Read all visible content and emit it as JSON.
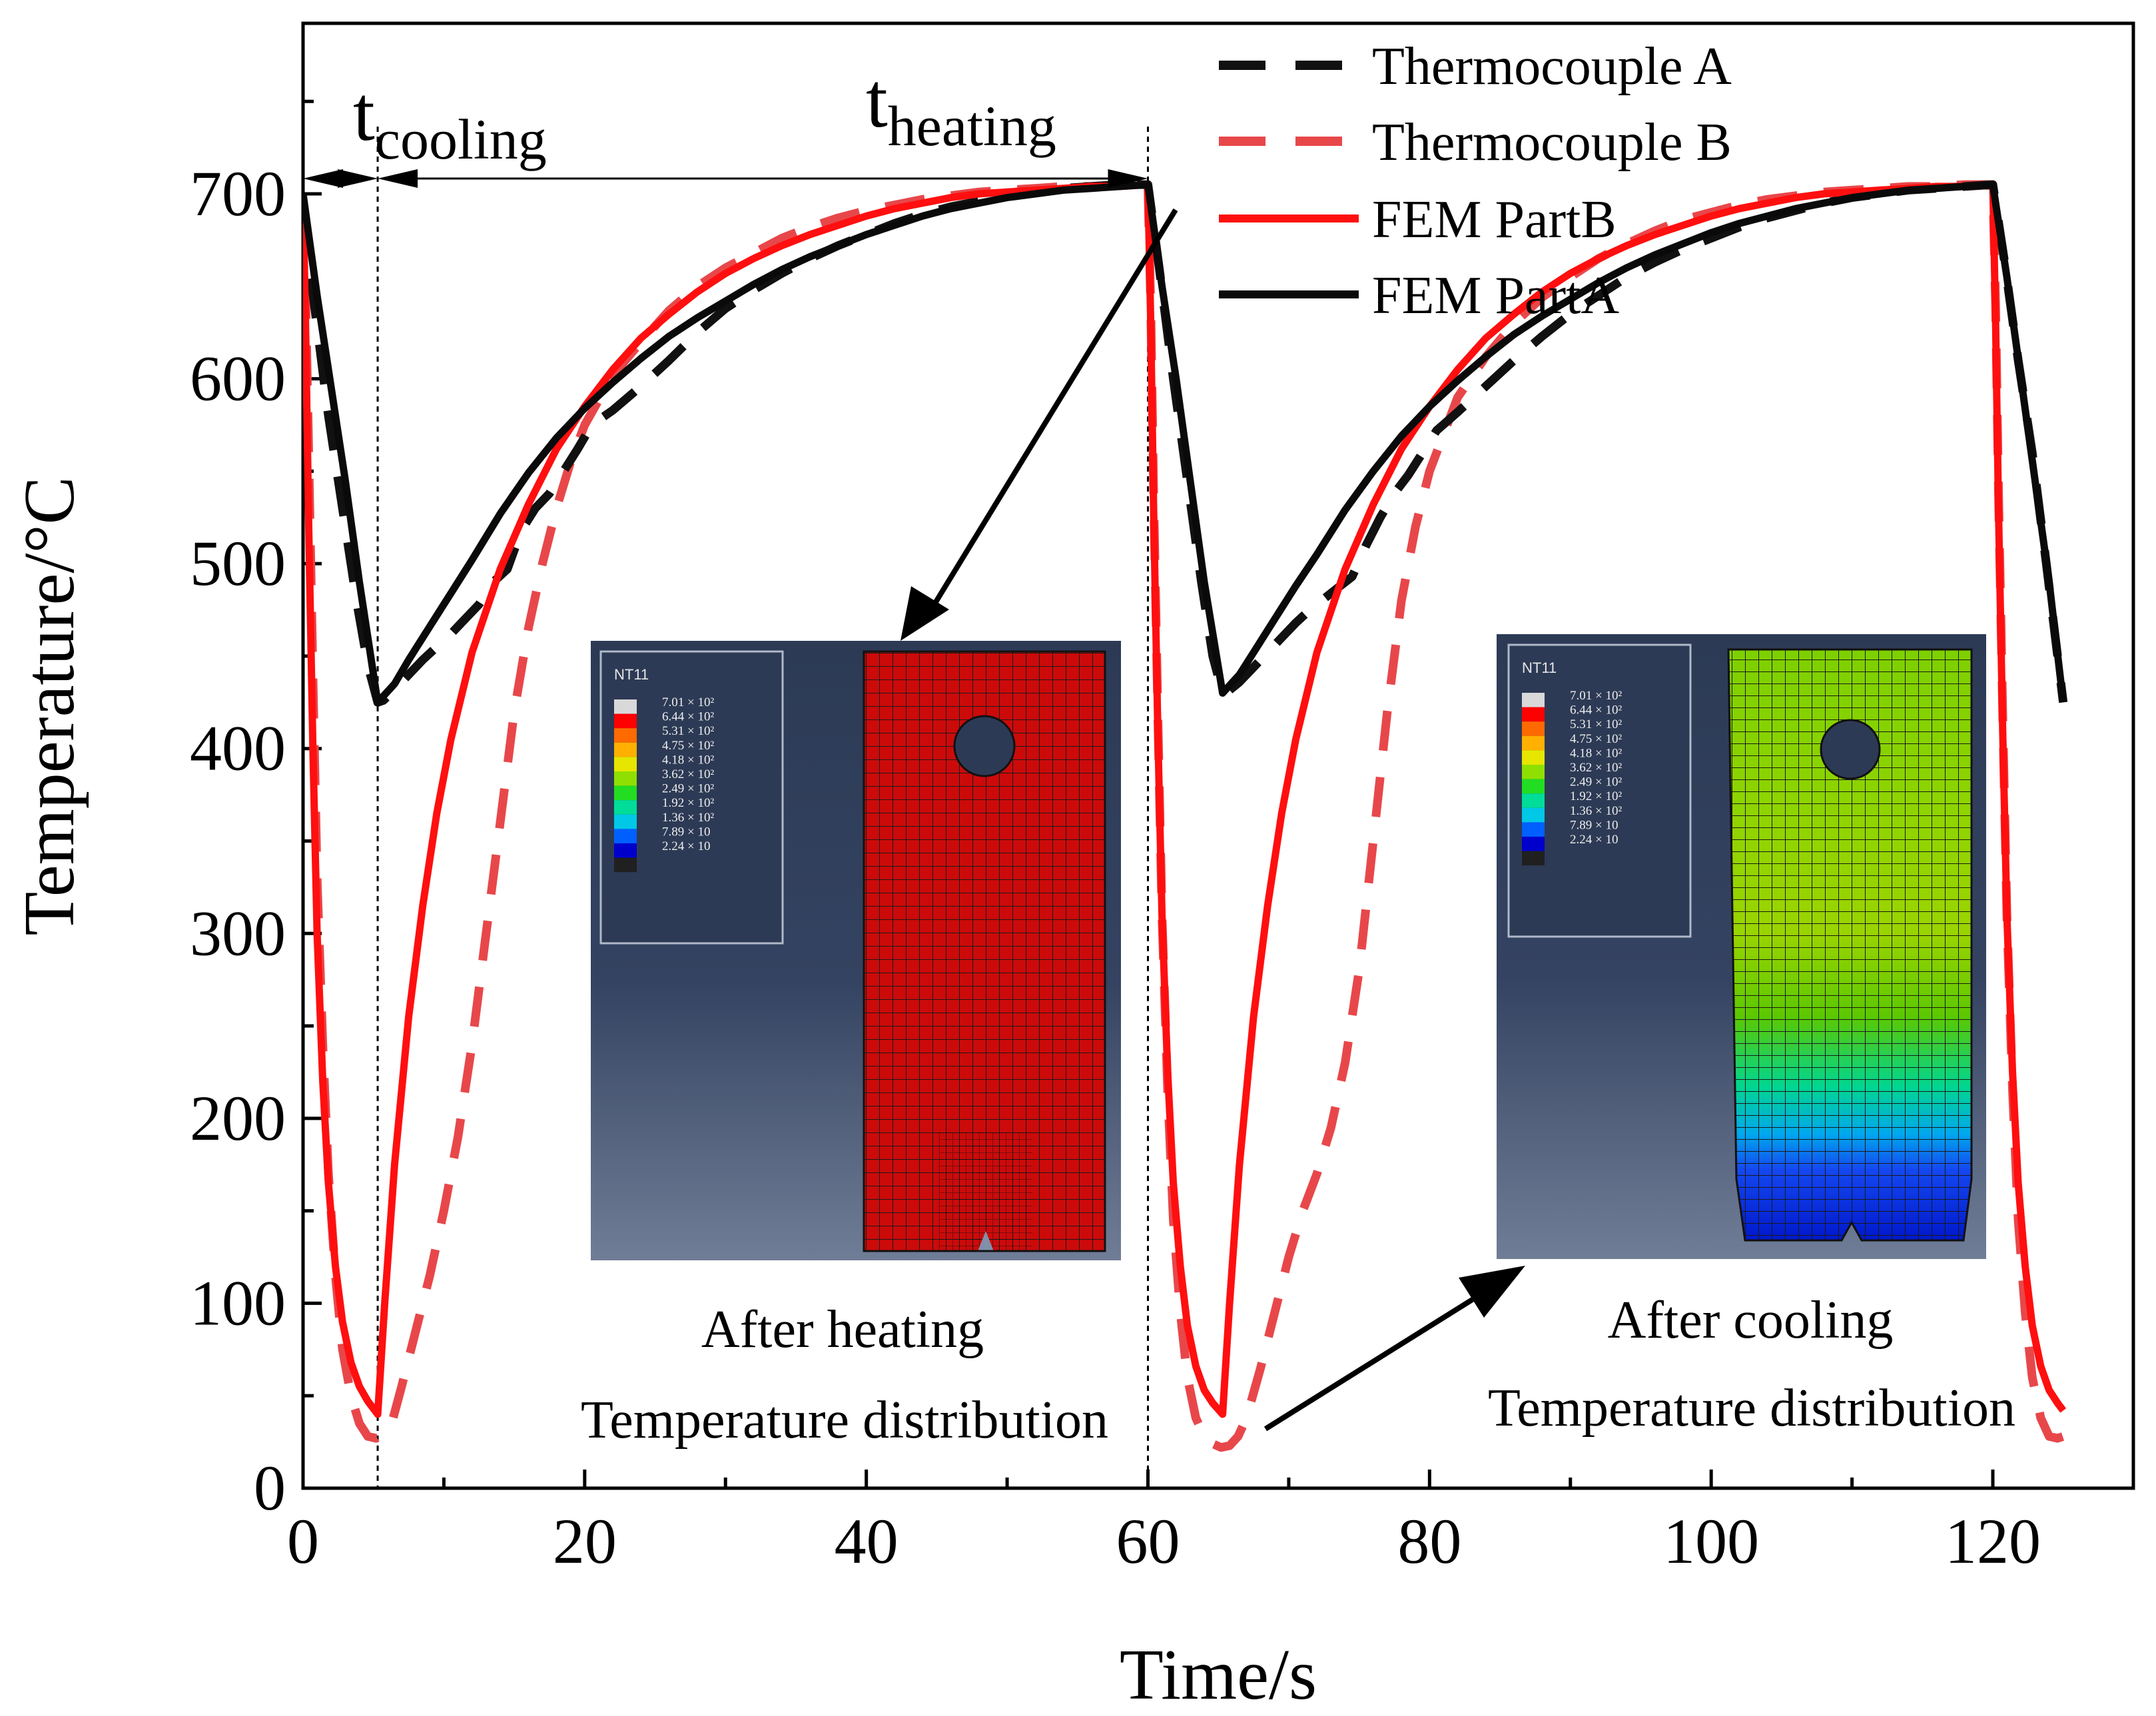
{
  "chart_data": {
    "type": "line",
    "xlabel": "Time/s",
    "ylabel": "Temperature/°C",
    "xlim": [
      0,
      125
    ],
    "ylim": [
      0,
      800
    ],
    "x_ticks": [
      0,
      20,
      40,
      60,
      80,
      100,
      120
    ],
    "y_ticks": [
      0,
      100,
      200,
      300,
      400,
      500,
      600,
      700
    ],
    "legend_position": "top-right",
    "legend": [
      "Thermocouple A",
      "Thermocouple B",
      "FEM PartB",
      "FEM PartA"
    ],
    "series": [
      {
        "name": "Thermocouple A",
        "style": "dashed",
        "color": "#111111",
        "x": [
          0,
          0.8,
          1.8,
          2.8,
          3.8,
          4.6,
          5.3,
          5.7,
          6.5,
          7.5,
          8.5,
          9.5,
          10.5,
          11.5,
          12.5,
          13.5,
          14.5,
          15.5,
          16.5,
          17.5,
          18.5,
          19.5,
          20.5,
          22,
          24,
          26,
          28,
          30,
          32,
          34,
          36,
          38,
          40,
          42,
          44,
          46,
          48,
          50,
          52,
          54,
          56,
          58,
          60,
          60.8,
          61.8,
          62.8,
          63.8,
          64.6,
          65.3,
          65.7,
          66.5,
          67.5,
          68.5,
          69.5,
          70.5,
          71.5,
          72.5,
          73.5,
          74.5,
          75.5,
          76.5,
          77.5,
          78.5,
          79.5,
          80.5,
          82,
          84,
          86,
          88,
          90,
          92,
          94,
          96,
          98,
          100,
          102,
          104,
          106,
          108,
          110,
          112,
          114,
          116,
          118,
          120,
          120.8,
          121.8,
          122.8,
          123.8,
          125
        ],
        "y": [
          690,
          640,
          580,
          530,
          480,
          445,
          425,
          426,
          432,
          440,
          448,
          455,
          462,
          470,
          478,
          490,
          497,
          518,
          530,
          538,
          550,
          562,
          575,
          583,
          596,
          610,
          625,
          638,
          648,
          657,
          665,
          672,
          678,
          684,
          689,
          693,
          696,
          699,
          701,
          703,
          704,
          705,
          705,
          660,
          600,
          545,
          490,
          450,
          430,
          431,
          436,
          444,
          452,
          460,
          468,
          475,
          481,
          487,
          493,
          510,
          525,
          538,
          548,
          560,
          572,
          582,
          596,
          610,
          623,
          635,
          645,
          655,
          663,
          670,
          676,
          682,
          687,
          691,
          695,
          698,
          700,
          702,
          703,
          704,
          705,
          665,
          610,
          560,
          500,
          425
        ]
      },
      {
        "name": "Thermocouple B",
        "style": "dashed",
        "color": "#e8474a",
        "x": [
          0,
          0.2,
          0.4,
          0.7,
          1.0,
          1.4,
          1.8,
          2.3,
          2.8,
          3.4,
          4.0,
          4.6,
          5.2,
          5.8,
          6.4,
          7.0,
          8.0,
          9.0,
          10.0,
          11.0,
          12.0,
          13.0,
          14.0,
          15.0,
          16.0,
          17.0,
          18.0,
          19.0,
          20.0,
          22,
          24,
          26,
          28,
          30,
          32,
          34,
          36,
          38,
          40,
          42,
          44,
          46,
          48,
          50,
          52,
          54,
          56,
          58,
          60,
          60.2,
          60.4,
          60.7,
          61.0,
          61.4,
          61.8,
          62.3,
          62.8,
          63.4,
          64.0,
          64.6,
          65.2,
          65.8,
          66.4,
          67.0,
          68.0,
          69.0,
          70.0,
          71.0,
          72.0,
          73.0,
          74.0,
          75.0,
          76.0,
          77.0,
          78.0,
          79.0,
          80.0,
          82,
          84,
          86,
          88,
          90,
          92,
          94,
          96,
          98,
          100,
          102,
          104,
          106,
          108,
          110,
          112,
          114,
          116,
          118,
          120,
          120.2,
          120.4,
          120.7,
          121.0,
          121.4,
          121.8,
          122.3,
          122.8,
          123.4,
          124.0,
          124.6,
          125.0
        ],
        "y": [
          690,
          640,
          560,
          440,
          330,
          240,
          170,
          115,
          75,
          50,
          35,
          28,
          27,
          30,
          38,
          55,
          85,
          115,
          150,
          190,
          240,
          300,
          360,
          420,
          465,
          500,
          530,
          555,
          575,
          602,
          620,
          637,
          650,
          660,
          668,
          676,
          682,
          687,
          691,
          694,
          697,
          699,
          701,
          702,
          703,
          704,
          704,
          705,
          705,
          640,
          540,
          420,
          310,
          215,
          145,
          95,
          60,
          38,
          28,
          24,
          22,
          23,
          28,
          38,
          65,
          95,
          125,
          150,
          170,
          195,
          230,
          280,
          350,
          420,
          480,
          520,
          550,
          590,
          612,
          630,
          644,
          655,
          665,
          673,
          680,
          686,
          690,
          694,
          697,
          699,
          701,
          702,
          703,
          704,
          704,
          705,
          705,
          640,
          540,
          420,
          310,
          215,
          145,
          95,
          60,
          38,
          28,
          27,
          28
        ]
      },
      {
        "name": "FEM PartB",
        "style": "solid",
        "color": "#ff0f0f",
        "x": [
          0,
          0.2,
          0.4,
          0.7,
          1.0,
          1.4,
          1.8,
          2.3,
          2.8,
          3.4,
          4.0,
          4.6,
          5.3,
          5.8,
          6.5,
          7.5,
          8.5,
          9.5,
          10.5,
          12,
          14,
          16,
          18,
          20,
          22,
          24,
          26,
          28,
          30,
          32,
          34,
          36,
          38,
          40,
          42,
          44,
          46,
          48,
          50,
          52,
          54,
          56,
          58,
          60,
          60.2,
          60.4,
          60.7,
          61.0,
          61.4,
          61.8,
          62.3,
          62.8,
          63.4,
          64.0,
          64.6,
          65.3,
          65.8,
          66.5,
          67.5,
          68.5,
          69.5,
          70.5,
          72,
          74,
          76,
          78,
          80,
          82,
          84,
          86,
          88,
          90,
          92,
          94,
          96,
          98,
          100,
          102,
          104,
          106,
          108,
          110,
          112,
          114,
          116,
          118,
          120,
          120.2,
          120.4,
          120.7,
          121.0,
          121.4,
          121.8,
          122.3,
          122.8,
          123.4,
          124.0,
          124.6,
          125.0
        ],
        "y": [
          700,
          620,
          520,
          400,
          300,
          220,
          165,
          120,
          90,
          68,
          55,
          47,
          40,
          100,
          175,
          255,
          315,
          365,
          405,
          452,
          497,
          532,
          562,
          585,
          605,
          622,
          635,
          647,
          657,
          665,
          672,
          678,
          683,
          688,
          692,
          695,
          698,
          700,
          701,
          702,
          703,
          704,
          704,
          705,
          630,
          530,
          410,
          310,
          225,
          165,
          120,
          88,
          66,
          53,
          46,
          40,
          100,
          175,
          255,
          315,
          365,
          405,
          452,
          497,
          532,
          562,
          585,
          605,
          622,
          635,
          647,
          657,
          665,
          672,
          678,
          683,
          688,
          692,
          695,
          698,
          700,
          701,
          702,
          703,
          704,
          704,
          705,
          630,
          530,
          410,
          310,
          225,
          165,
          120,
          88,
          66,
          53,
          46,
          42
        ]
      },
      {
        "name": "FEM PartA",
        "style": "solid",
        "color": "#0a0a0a",
        "x": [
          0,
          1,
          2,
          3,
          4,
          5.3,
          6.5,
          7.5,
          8.5,
          9.5,
          10.5,
          12,
          14,
          16,
          18,
          20,
          22,
          24,
          26,
          28,
          30,
          32,
          34,
          36,
          38,
          40,
          42,
          44,
          46,
          48,
          50,
          52,
          54,
          56,
          58,
          60,
          61,
          62,
          63,
          64,
          65.3,
          66.5,
          67.5,
          68.5,
          69.5,
          70.5,
          72,
          74,
          76,
          78,
          80,
          82,
          84,
          86,
          88,
          90,
          92,
          94,
          96,
          98,
          100,
          102,
          104,
          106,
          108,
          110,
          112,
          114,
          116,
          118,
          120,
          121,
          122,
          123,
          124,
          125
        ],
        "y": [
          700,
          645,
          595,
          545,
          490,
          425,
          435,
          448,
          460,
          472,
          484,
          502,
          527,
          549,
          568,
          584,
          598,
          611,
          623,
          633,
          642,
          651,
          659,
          666,
          672,
          678,
          683,
          688,
          692,
          695,
          698,
          700,
          702,
          703,
          704,
          705,
          650,
          600,
          545,
          490,
          430,
          440,
          452,
          464,
          476,
          488,
          505,
          529,
          550,
          569,
          585,
          599,
          612,
          624,
          634,
          643,
          652,
          660,
          667,
          673,
          679,
          684,
          688,
          692,
          695,
          698,
          700,
          702,
          703,
          704,
          705,
          655,
          600,
          545,
          490,
          425
        ]
      }
    ],
    "annotations": {
      "t_cooling": {
        "main": "t",
        "sub": "cooling",
        "from_x": 0,
        "to_x": 5.3
      },
      "t_heating": {
        "main": "t",
        "sub": "heating",
        "from_x": 5.3,
        "to_x": 60
      },
      "after_heating": [
        "After heating",
        "Temperature distribution"
      ],
      "after_cooling": [
        "After cooling",
        "Temperature distribution"
      ],
      "vlines_x": [
        5.3,
        60
      ]
    }
  },
  "insets": {
    "legend_title": "NT11",
    "legend_values": [
      "7.01 × 10²",
      "6.44 × 10²",
      "5.31 × 10²",
      "4.75 × 10²",
      "4.18 × 10²",
      "3.62 × 10²",
      "2.49 × 10²",
      "1.92 × 10²",
      "1.36 × 10²",
      "7.89 × 10",
      "2.24 × 10"
    ],
    "legend_colors": [
      "#d9d9d9",
      "#ff0000",
      "#ff6a00",
      "#ffb000",
      "#e6e600",
      "#8fe000",
      "#22dd22",
      "#00dd99",
      "#00c8e6",
      "#0060ff",
      "#0000cc",
      "#202020"
    ],
    "heated_color": "#cc0a0a",
    "cooled_gradient": [
      "#7ed000",
      "#8fd400",
      "#9ad400",
      "#5cc800",
      "#00d690",
      "#00a8ee",
      "#1448f0",
      "#0018cc"
    ]
  }
}
